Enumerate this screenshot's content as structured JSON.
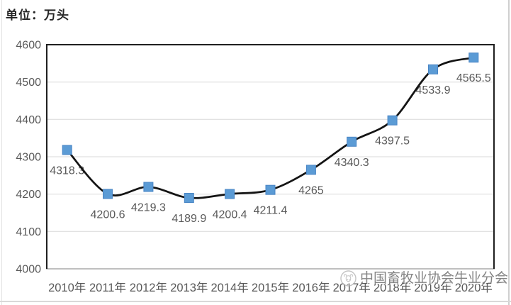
{
  "chart_data": {
    "type": "line",
    "unit_label": "单位：万头",
    "xlabel": "",
    "ylabel": "",
    "categories": [
      "2010年",
      "2011年",
      "2012年",
      "2013年",
      "2014年",
      "2015年",
      "2016年",
      "2017年",
      "2018年",
      "2019年",
      "2020年"
    ],
    "values": [
      4318.3,
      4200.6,
      4219.3,
      4189.9,
      4200.4,
      4211.4,
      4265,
      4340.3,
      4397.5,
      4533.9,
      4565.5
    ],
    "data_labels": [
      "4318.3",
      "4200.6",
      "4219.3",
      "4189.9",
      "4200.4",
      "4211.4",
      "4265",
      "4340.3",
      "4397.5",
      "4533.9",
      "4565.5"
    ],
    "yticks": [
      4000,
      4100,
      4200,
      4300,
      4400,
      4500,
      4600
    ],
    "ylim": [
      4000,
      4600
    ],
    "grid": true,
    "legend": "none",
    "smooth": true,
    "marker": "square"
  },
  "watermark": {
    "logo": "cattle-association-logo",
    "text": "中国畜牧业协会牛业分会"
  },
  "colors": {
    "line": "#141414",
    "marker_fill": "#5b9bd5",
    "marker_edge": "#4a86c5",
    "gridline": "#d9d9d9",
    "axis_bottom": "#bfbfbf",
    "plot_border": "#1f1f1f",
    "label_text": "#595959",
    "title_text": "#262626",
    "watermark_text": "#696969"
  }
}
